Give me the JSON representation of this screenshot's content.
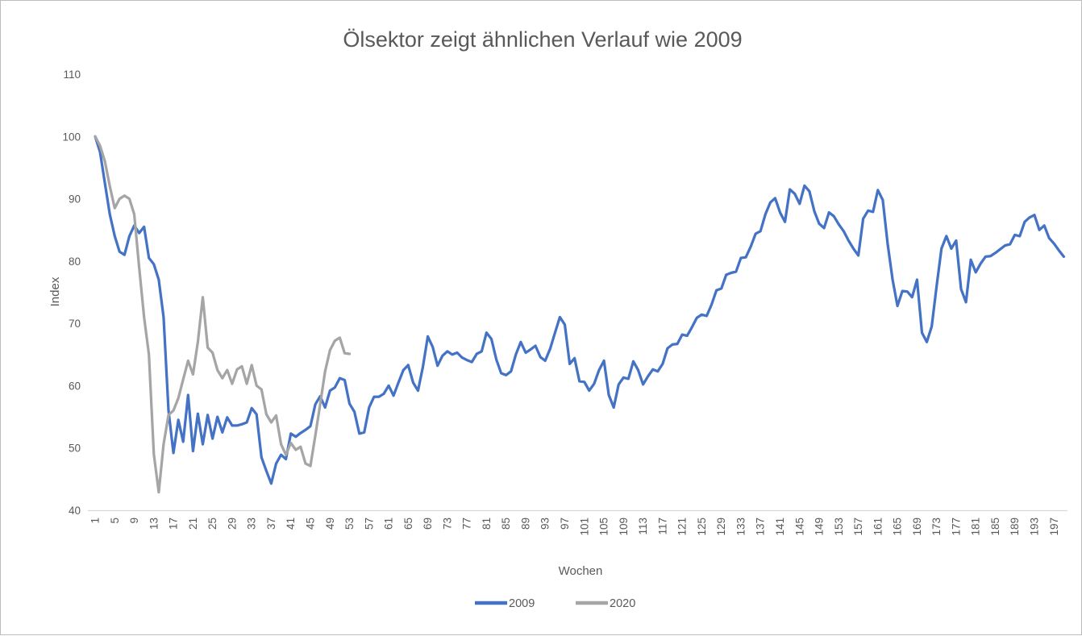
{
  "window": {
    "background": "#ffffff",
    "border_color": "#bdbdbd"
  },
  "text_colors": {
    "title": "#595959",
    "axis_labels": "#595959",
    "axis_line": "#d9d9d9"
  },
  "chart_data": {
    "type": "line",
    "title": "Ölsektor zeigt ähnlichen Verlauf wie 2009",
    "xlabel": "Wochen",
    "ylabel": "Index",
    "ylim": [
      40,
      110
    ],
    "y_ticks": [
      40,
      50,
      60,
      70,
      80,
      90,
      100,
      110
    ],
    "x_tick_labels": [
      "1",
      "5",
      "9",
      "13",
      "17",
      "21",
      "25",
      "29",
      "33",
      "37",
      "41",
      "45",
      "49",
      "53",
      "57",
      "61",
      "65",
      "69",
      "73",
      "77",
      "81",
      "85",
      "89",
      "93",
      "97",
      "101",
      "105",
      "109",
      "113",
      "117",
      "121",
      "125",
      "129",
      "133",
      "137",
      "141",
      "145",
      "149",
      "153",
      "157",
      "161",
      "165",
      "169",
      "173",
      "177",
      "181",
      "185",
      "189",
      "193",
      "197"
    ],
    "gridlines": false,
    "legend_position": "bottom",
    "series": [
      {
        "name": "2009",
        "color": "#4472C4",
        "start_week": 1,
        "values": [
          100,
          97.5,
          92.5,
          87.5,
          84,
          81.5,
          81,
          84,
          85.7,
          84.5,
          85.5,
          80.5,
          79.5,
          77,
          71,
          56,
          49.2,
          54.5,
          51,
          58.5,
          49.5,
          55.5,
          50.6,
          55.3,
          51.5,
          55,
          52.5,
          54.9,
          53.6,
          53.6,
          53.8,
          54.1,
          56.4,
          55.4,
          48.5,
          46.3,
          44.3,
          47.5,
          48.9,
          48.2,
          52.3,
          51.8,
          52.4,
          52.9,
          53.5,
          57,
          58.3,
          56.5,
          59.2,
          59.7,
          61.2,
          60.9,
          57.1,
          55.8,
          52.3,
          52.5,
          56.5,
          58.2,
          58.2,
          58.7,
          60,
          58.4,
          60.5,
          62.5,
          63.3,
          60.5,
          59.2,
          63,
          67.9,
          66.2,
          63.2,
          64.8,
          65.5,
          65,
          65.3,
          64.5,
          64.1,
          63.8,
          65.1,
          65.5,
          68.5,
          67.5,
          64.2,
          62,
          61.7,
          62.3,
          65,
          67,
          65.3,
          65.8,
          66.4,
          64.6,
          64,
          65.9,
          68.5,
          71,
          69.8,
          63.5,
          64.4,
          60.7,
          60.6,
          59.2,
          60.3,
          62.5,
          64,
          58.5,
          56.5,
          60.2,
          61.3,
          61.1,
          63.9,
          62.5,
          60.2,
          61.5,
          62.6,
          62.3,
          63.5,
          66,
          66.6,
          66.7,
          68.2,
          68,
          69.4,
          70.9,
          71.4,
          71.2,
          73,
          75.3,
          75.6,
          77.8,
          78.1,
          78.3,
          80.5,
          80.6,
          82.3,
          84.4,
          84.8,
          87.5,
          89.4,
          90.1,
          87.8,
          86.3,
          91.5,
          90.8,
          89.2,
          92.1,
          91.2,
          88,
          86,
          85.3,
          87.8,
          87.2,
          85.9,
          84.8,
          83.3,
          82,
          80.9,
          86.8,
          88.1,
          87.9,
          91.4,
          89.8,
          82.7,
          77,
          72.8,
          75.2,
          75.1,
          74.2,
          77,
          68.5,
          67,
          69.5,
          76,
          82,
          84,
          82,
          83.3,
          75.5,
          73.4,
          80.2,
          78.2,
          79.6,
          80.7,
          80.8,
          81.3,
          81.9,
          82.5,
          82.7,
          84.2,
          84,
          86.3,
          87,
          87.4,
          85,
          85.7,
          83.7,
          82.8,
          81.7,
          80.7
        ]
      },
      {
        "name": "2020",
        "color": "#A5A5A5",
        "start_week": 1,
        "values": [
          100,
          98.5,
          96,
          92,
          88.5,
          90,
          90.5,
          90,
          87.5,
          79,
          71,
          65,
          49,
          42.9,
          50.6,
          55.3,
          56,
          58,
          61,
          64,
          61.8,
          67,
          74.2,
          66.1,
          65.3,
          62.5,
          61.2,
          62.5,
          60.3,
          62.6,
          63.1,
          60.3,
          63.3,
          60,
          59.4,
          55.4,
          54.1,
          55.2,
          50.6,
          48.9,
          50.8,
          49.7,
          50.2,
          47.5,
          47.1,
          52,
          57,
          62.3,
          65.7,
          67.2,
          67.7,
          65.2,
          65.1
        ]
      }
    ]
  }
}
